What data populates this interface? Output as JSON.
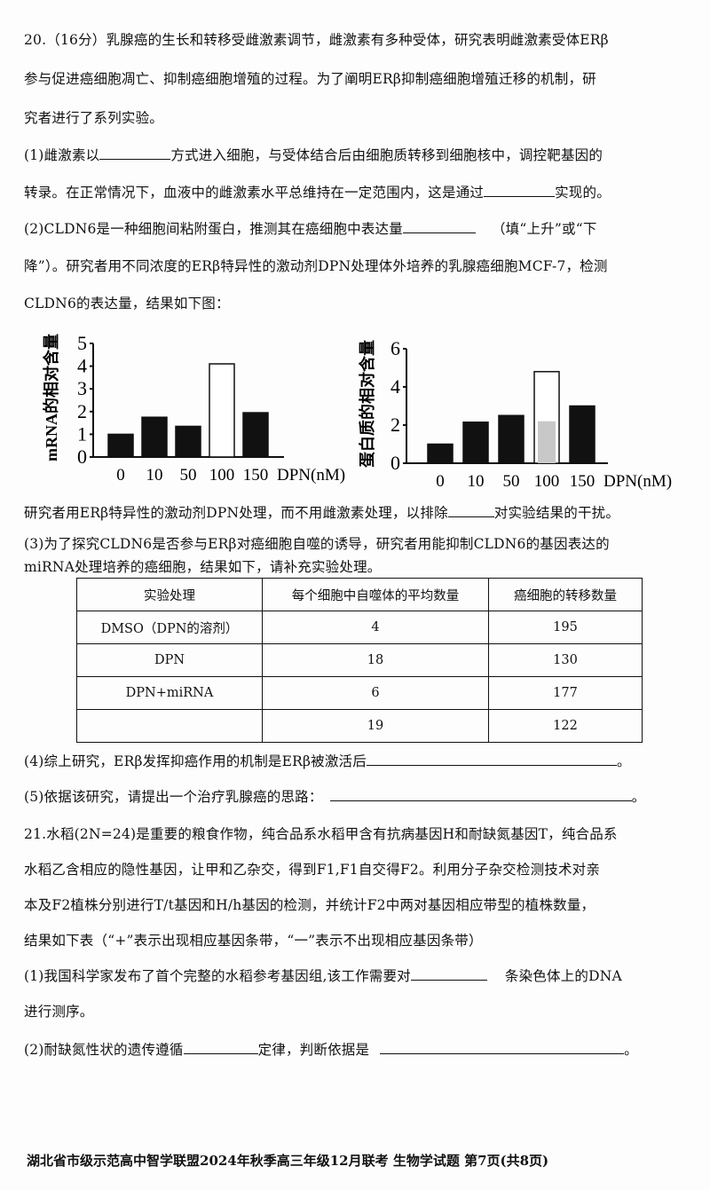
{
  "q20": {
    "intro": [
      "20.（16分）乳腺癌的生长和转移受雌激素调节，雌激素有多种受体，研究表明雌激素受体ERβ",
      "参与促进癌细胞凋亡、抑制癌细胞增殖的过程。为了阐明ERβ抑制癌细胞增殖迁移的机制，研",
      "究者进行了系列实验。"
    ],
    "p1a": "(1)雌激素以",
    "p1b": "方式进入细胞，与受体结合后由细胞质转移到细胞核中，调控靶基因的",
    "p1c": "转录。在正常情况下，血液中的雌激素水平总维持在一定范围内，这是通过",
    "p1d": "实现的。",
    "p2a": "(2)CLDN6是一种细胞间粘附蛋白，推测其在癌细胞中表达量",
    "p2b": "（填“上升”或“下",
    "p2c": "降”）。研究者用不同浓度的ERβ特异性的激动剂DPN处理体外培养的乳腺癌细胞MCF-7，检测",
    "p2d": "CLDN6的表达量，结果如下图：",
    "p2e": "研究者用ERβ特异性的激动剂DPN处理，而不用雌激素处理，以排除",
    "p2f": "对实验结果的干扰。",
    "p3a": "(3)为了探究CLDN6是否参与ERβ对癌细胞自噬的诱导，研究者用能抑制CLDN6的基因表达的",
    "p3b": "miRNA处理培养的癌细胞，结果如下，请补充实验处理。",
    "table": {
      "headers": [
        "实验处理",
        "每个细胞中自噬体的平均数量",
        "癌细胞的转移数量"
      ],
      "rows": [
        [
          "DMSO（DPN的溶剂）",
          "4",
          "195"
        ],
        [
          "DPN",
          "18",
          "130"
        ],
        [
          "DPN+miRNA",
          "6",
          "177"
        ],
        [
          "",
          "19",
          "122"
        ]
      ]
    },
    "p4": "(4)综上研究，ERβ发挥抑癌作用的机制是ERβ被激活后",
    "p5": "(5)依据该研究，请提出一个治疗乳腺癌的思路：",
    "period": "。"
  },
  "q21": {
    "l1": "21.水稻(2N=24)是重要的粮食作物，纯合品系水稻甲含有抗病基因H和耐缺氮基因T，纯合品系",
    "l2": "水稻乙含相应的隐性基因，让甲和乙杂交，得到F1,F1自交得F2。利用分子杂交检测技术对亲",
    "l3": "本及F2植株分别进行T/t基因和H/h基因的检测，并统计F2中两对基因相应带型的植株数量，",
    "l4": "结果如下表（“+”表示出现相应基因条带，“一”表示不出现相应基因条带）",
    "p1a": "(1)我国科学家发布了首个完整的水稻参考基因组,该工作需要对",
    "p1b": "条染色体上的DNA",
    "p1c": "进行测序。",
    "p2a": "(2)耐缺氮性状的遗传遵循",
    "p2b": "定律，判断依据是"
  },
  "footer": "湖北省市级示范高中智学联盟2024年秋季高三年级12月联考 生物学试题 第7页(共8页)",
  "chart_data": [
    {
      "type": "bar",
      "ylabel": "mRNA的相对含量",
      "xlabel": "DPN(nM)",
      "categories": [
        "0",
        "10",
        "50",
        "100",
        "150"
      ],
      "values": [
        1.0,
        1.75,
        1.35,
        4.1,
        1.95
      ],
      "ylim": [
        0,
        5
      ],
      "yticks": [
        0,
        1,
        2,
        3,
        4,
        5
      ],
      "highlight_category": "100"
    },
    {
      "type": "bar",
      "ylabel": "蛋白质的相对含量",
      "xlabel": "DPN(nM)",
      "categories": [
        "0",
        "10",
        "50",
        "100",
        "150"
      ],
      "values": [
        1.0,
        2.15,
        2.5,
        4.8,
        3.0
      ],
      "ylim": [
        0,
        6
      ],
      "yticks": [
        0,
        2,
        4,
        6
      ],
      "highlight_category": "100"
    }
  ]
}
